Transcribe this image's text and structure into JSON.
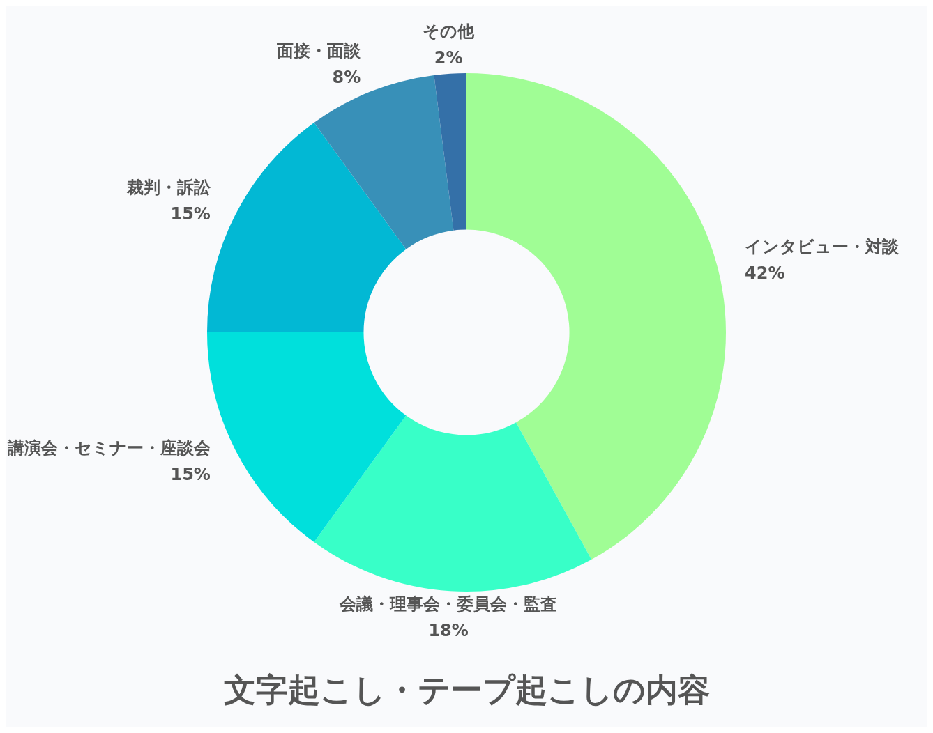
{
  "chart_data": {
    "type": "donut",
    "title": "文字起こし・テープ起こしの内容",
    "categories": [
      "インタビュー・対談",
      "会議・理事会・委員会・監査",
      "講演会・セミナー・座談会",
      "裁判・訴訟",
      "面接・面談",
      "その他"
    ],
    "values": [
      42,
      18,
      15,
      15,
      8,
      2
    ],
    "value_labels": [
      "42%",
      "18%",
      "15%",
      "15%",
      "8%",
      "2%"
    ],
    "colors": [
      "#a0fd95",
      "#38ffc8",
      "#00e0dc",
      "#02b8d4",
      "#3890b8",
      "#3470a8"
    ],
    "legend": false
  }
}
